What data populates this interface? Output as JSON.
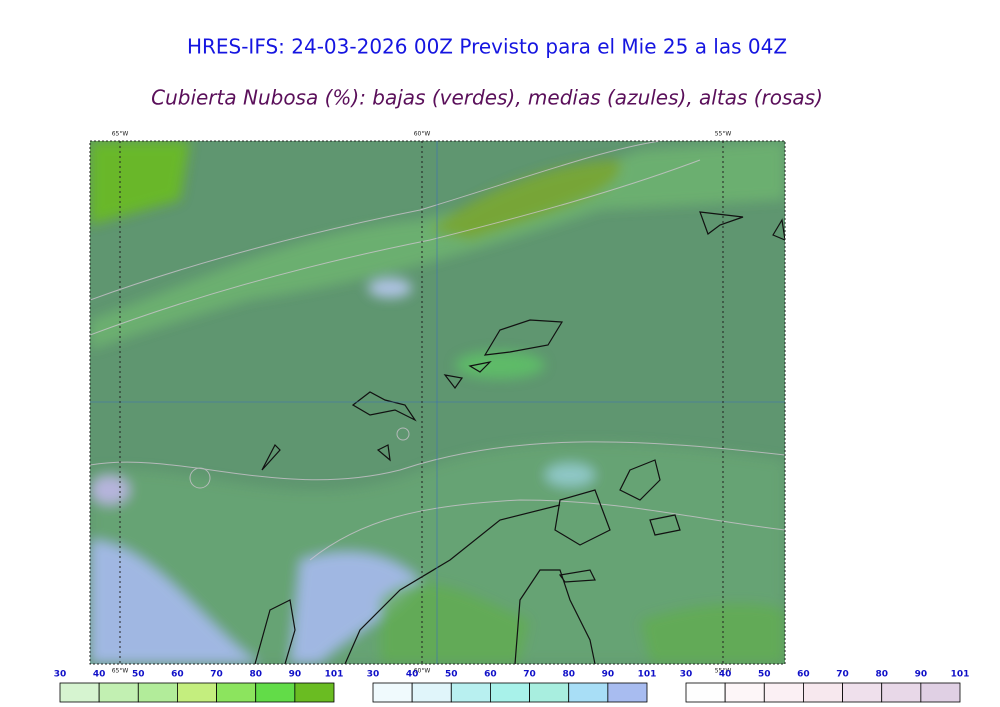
{
  "header": {
    "title": "HRES-IFS: 24-03-2026 00Z Previsto para el Mie 25 a las 04Z",
    "subtitle": "Cubierta Nubosa (%): bajas (verdes), medias (azules), altas (rosas)"
  },
  "map": {
    "top_labels": [
      "65°W",
      "60°W",
      "55°W"
    ],
    "bottom_labels": [
      "65°W",
      "60°W",
      "55°W"
    ]
  },
  "colorbars": [
    {
      "ticks": [
        30,
        40,
        50,
        60,
        70,
        80,
        90,
        101
      ],
      "colors": [
        "#d6f4d0",
        "#c2f0b2",
        "#b2ec9a",
        "#c4ee7e",
        "#8ce45e",
        "#62dc48",
        "#6abc22"
      ]
    },
    {
      "ticks": [
        30,
        40,
        50,
        60,
        70,
        80,
        90,
        101
      ],
      "colors": [
        "#f0fafd",
        "#e0f5fa",
        "#b8f0f0",
        "#a8f2ea",
        "#a8eedf",
        "#a8def6",
        "#a8bcf0"
      ]
    },
    {
      "ticks": [
        30,
        40,
        50,
        60,
        70,
        80,
        90,
        101
      ],
      "colors": [
        "#fefefe",
        "#fdf6f8",
        "#fbf0f4",
        "#f7e8ee",
        "#efe0ec",
        "#e8d8e8",
        "#e0d0e4"
      ]
    }
  ]
}
